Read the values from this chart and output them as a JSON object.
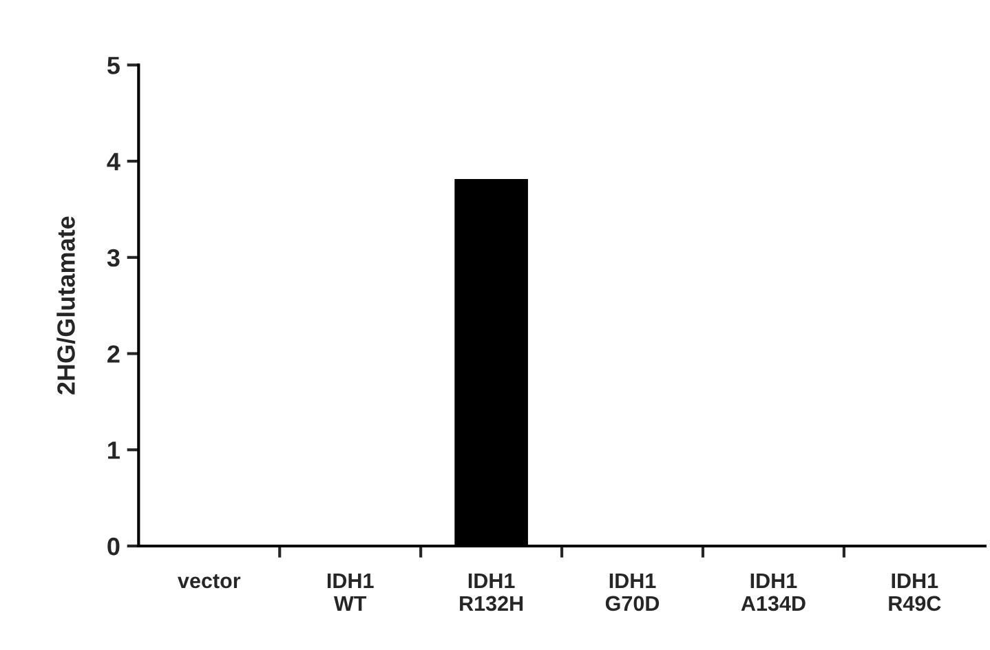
{
  "chart_data": {
    "type": "bar",
    "ylabel": "2HG/Glutamate",
    "categories": [
      "vector",
      "IDH1\nWT",
      "IDH1\nR132H",
      "IDH1\nG70D",
      "IDH1\nA134D",
      "IDH1\nR49C"
    ],
    "values": [
      0,
      0,
      3.8,
      0,
      0,
      0
    ],
    "color": "#000000",
    "ylim": [
      0,
      5
    ],
    "yticks": [
      0,
      1,
      2,
      3,
      4,
      5
    ],
    "grid": false,
    "legend": false
  }
}
